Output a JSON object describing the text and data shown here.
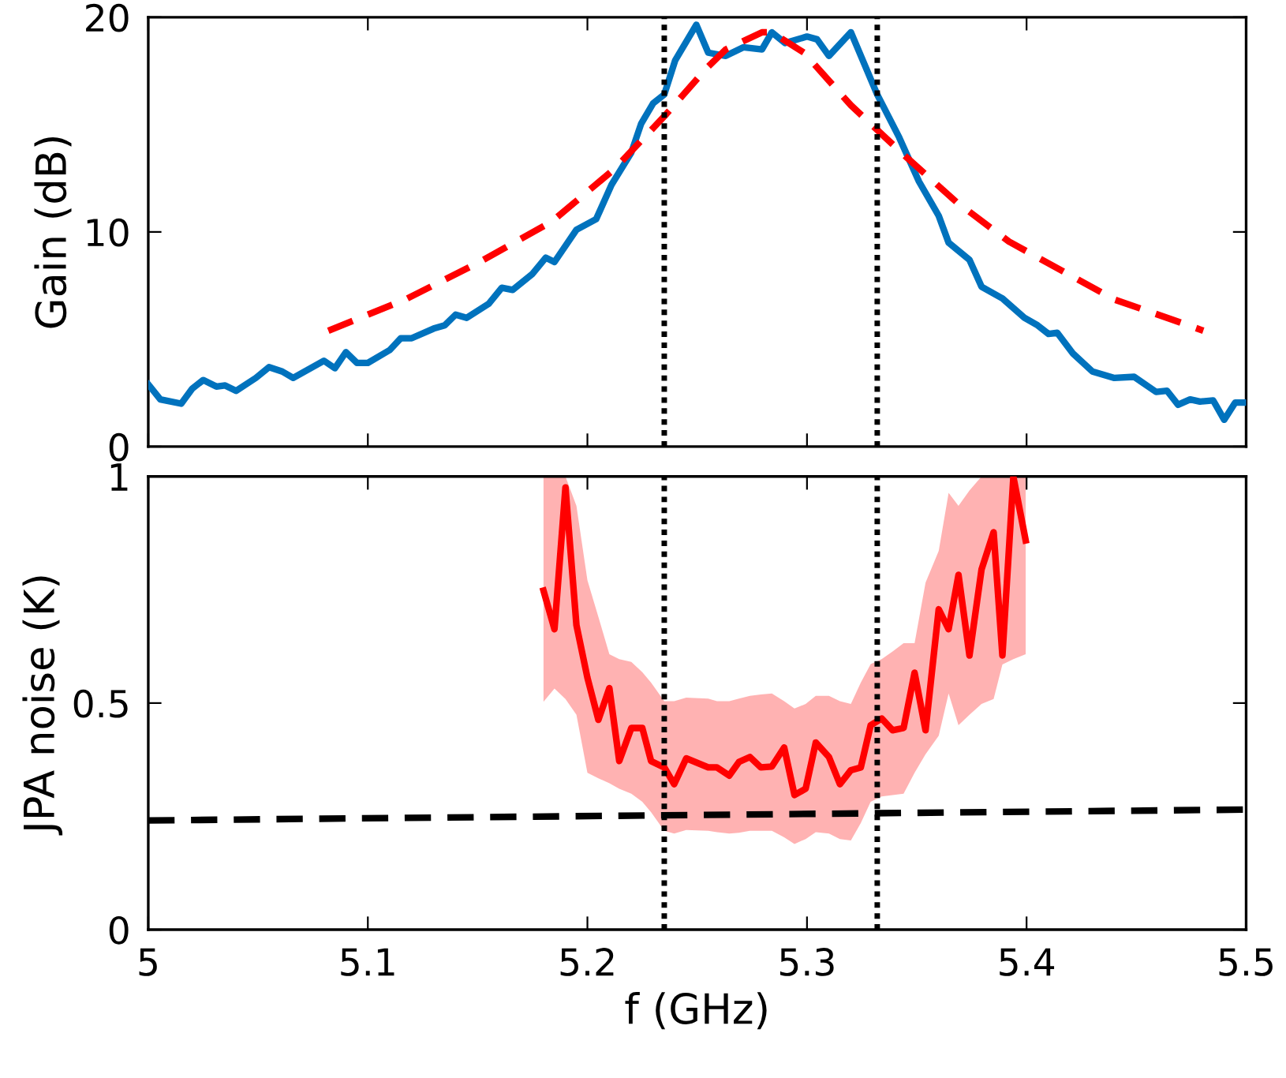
{
  "chart_data": [
    {
      "type": "line",
      "ylabel": "Gain (dB)",
      "xlim": [
        5,
        5.5
      ],
      "ylim": [
        0,
        20
      ],
      "xticks": [
        5,
        5.1,
        5.2,
        5.3,
        5.4,
        5.5
      ],
      "yticks": [
        0,
        10,
        20
      ],
      "tick_labels": "y",
      "grid": false,
      "legend": false,
      "series": [
        {
          "color": "#0072bd",
          "line_style": "solid",
          "x": [
            5.0,
            5.0055,
            5.015,
            5.02,
            5.025,
            5.031,
            5.035,
            5.04,
            5.049,
            5.055,
            5.061,
            5.066,
            5.08,
            5.085,
            5.09,
            5.095,
            5.1,
            5.11,
            5.115,
            5.12,
            5.13,
            5.135,
            5.14,
            5.145,
            5.155,
            5.161,
            5.166,
            5.175,
            5.181,
            5.185,
            5.195,
            5.204,
            5.211,
            5.22,
            5.2245,
            5.23,
            5.235,
            5.24,
            5.2496,
            5.255,
            5.263,
            5.271,
            5.2795,
            5.284,
            5.29,
            5.3,
            5.3046,
            5.31,
            5.32,
            5.332,
            5.342,
            5.351,
            5.36,
            5.3645,
            5.374,
            5.3795,
            5.389,
            5.399,
            5.405,
            5.41,
            5.414,
            5.421,
            5.43,
            5.44,
            5.449,
            5.459,
            5.464,
            5.469,
            5.4745,
            5.479,
            5.485,
            5.49,
            5.495,
            5.499
          ],
          "values": [
            2.9,
            2.2,
            2.0,
            2.7,
            3.1,
            2.8,
            2.85,
            2.6,
            3.2,
            3.7,
            3.5,
            3.2,
            4.0,
            3.65,
            4.4,
            3.9,
            3.9,
            4.5,
            5.05,
            5.05,
            5.5,
            5.65,
            6.15,
            6.0,
            6.65,
            7.4,
            7.3,
            8.05,
            8.8,
            8.6,
            10.1,
            10.6,
            12.2,
            13.7,
            15.05,
            16.0,
            16.4,
            18.0,
            19.65,
            18.35,
            18.2,
            18.6,
            18.5,
            19.3,
            18.8,
            19.1,
            18.97,
            18.2,
            19.3,
            16.4,
            14.4,
            12.35,
            10.75,
            9.5,
            8.7,
            7.45,
            6.9,
            6.0,
            5.65,
            5.25,
            5.3,
            4.35,
            3.5,
            3.2,
            3.25,
            2.55,
            2.6,
            1.95,
            2.2,
            2.1,
            2.15,
            1.25,
            2.05,
            2.05
          ]
        },
        {
          "color": "#ff0000",
          "line_style": "dashed",
          "x": [
            5.082,
            5.117,
            5.15,
            5.184,
            5.2125,
            5.236,
            5.254,
            5.263,
            5.2795,
            5.284,
            5.2986,
            5.32,
            5.344,
            5.368,
            5.392,
            5.416,
            5.44,
            5.464,
            5.4805
          ],
          "values": [
            5.4,
            6.85,
            8.55,
            10.5,
            12.95,
            15.5,
            17.6,
            18.5,
            19.3,
            19.3,
            18.35,
            15.9,
            13.6,
            11.4,
            9.55,
            8.2,
            6.85,
            6.0,
            5.4
          ]
        }
      ],
      "ref_lines": [
        {
          "axis": "x",
          "value": 5.235,
          "color": "#000000",
          "line_style": "dotted"
        },
        {
          "axis": "x",
          "value": 5.332,
          "color": "#000000",
          "line_style": "dotted"
        }
      ]
    },
    {
      "type": "line",
      "xlabel": "f (GHz)",
      "ylabel": "JPA noise (K)",
      "xlim": [
        5,
        5.5
      ],
      "ylim": [
        0,
        1
      ],
      "xticks": [
        5,
        5.1,
        5.2,
        5.3,
        5.4,
        5.5
      ],
      "yticks": [
        0,
        0.5,
        1
      ],
      "grid": false,
      "legend": false,
      "series": [
        {
          "color": "#ff0000",
          "line_style": "solid",
          "x": [
            5.18,
            5.185,
            5.19,
            5.195,
            5.2,
            5.205,
            5.21,
            5.2145,
            5.22,
            5.225,
            5.229,
            5.235,
            5.2395,
            5.245,
            5.255,
            5.259,
            5.2646,
            5.269,
            5.274,
            5.279,
            5.284,
            5.2896,
            5.2943,
            5.2994,
            5.304,
            5.31,
            5.315,
            5.32,
            5.3245,
            5.329,
            5.334,
            5.339,
            5.344,
            5.349,
            5.354,
            5.36,
            5.3645,
            5.369,
            5.374,
            5.3795,
            5.385,
            5.389,
            5.394,
            5.3996
          ],
          "values": [
            0.748,
            0.663,
            0.976,
            0.672,
            0.556,
            0.463,
            0.533,
            0.372,
            0.445,
            0.445,
            0.372,
            0.358,
            0.321,
            0.378,
            0.358,
            0.358,
            0.34,
            0.37,
            0.381,
            0.358,
            0.36,
            0.402,
            0.297,
            0.311,
            0.413,
            0.381,
            0.321,
            0.352,
            0.358,
            0.451,
            0.466,
            0.44,
            0.445,
            0.567,
            0.44,
            0.707,
            0.663,
            0.783,
            0.605,
            0.795,
            0.877,
            0.605,
            0.999,
            0.859
          ],
          "upper": [
            1.0,
            1.0,
            1.0,
            0.935,
            0.771,
            0.69,
            0.608,
            0.597,
            0.591,
            0.568,
            0.545,
            0.504,
            0.504,
            0.512,
            0.51,
            0.504,
            0.504,
            0.51,
            0.516,
            0.519,
            0.521,
            0.504,
            0.488,
            0.498,
            0.516,
            0.516,
            0.504,
            0.498,
            0.545,
            0.586,
            0.597,
            0.614,
            0.632,
            0.632,
            0.766,
            0.836,
            0.964,
            0.935,
            0.969,
            1.0,
            1.0,
            1.0,
            1.0,
            1.0
          ],
          "lower": [
            0.503,
            0.532,
            0.509,
            0.474,
            0.346,
            0.334,
            0.323,
            0.311,
            0.3,
            0.282,
            0.259,
            0.218,
            0.212,
            0.22,
            0.218,
            0.215,
            0.212,
            0.214,
            0.218,
            0.218,
            0.218,
            0.204,
            0.189,
            0.2,
            0.215,
            0.212,
            0.2,
            0.197,
            0.235,
            0.282,
            0.294,
            0.297,
            0.3,
            0.346,
            0.387,
            0.428,
            0.521,
            0.451,
            0.474,
            0.498,
            0.509,
            0.585,
            0.597,
            0.608
          ]
        },
        {
          "color": "#000000",
          "line_style": "dashed",
          "x": [
            5.0,
            5.5
          ],
          "values": [
            0.241,
            0.265
          ]
        }
      ],
      "ref_lines": [
        {
          "axis": "x",
          "value": 5.235,
          "color": "#000000",
          "line_style": "dotted"
        },
        {
          "axis": "x",
          "value": 5.332,
          "color": "#000000",
          "line_style": "dotted"
        }
      ]
    }
  ]
}
